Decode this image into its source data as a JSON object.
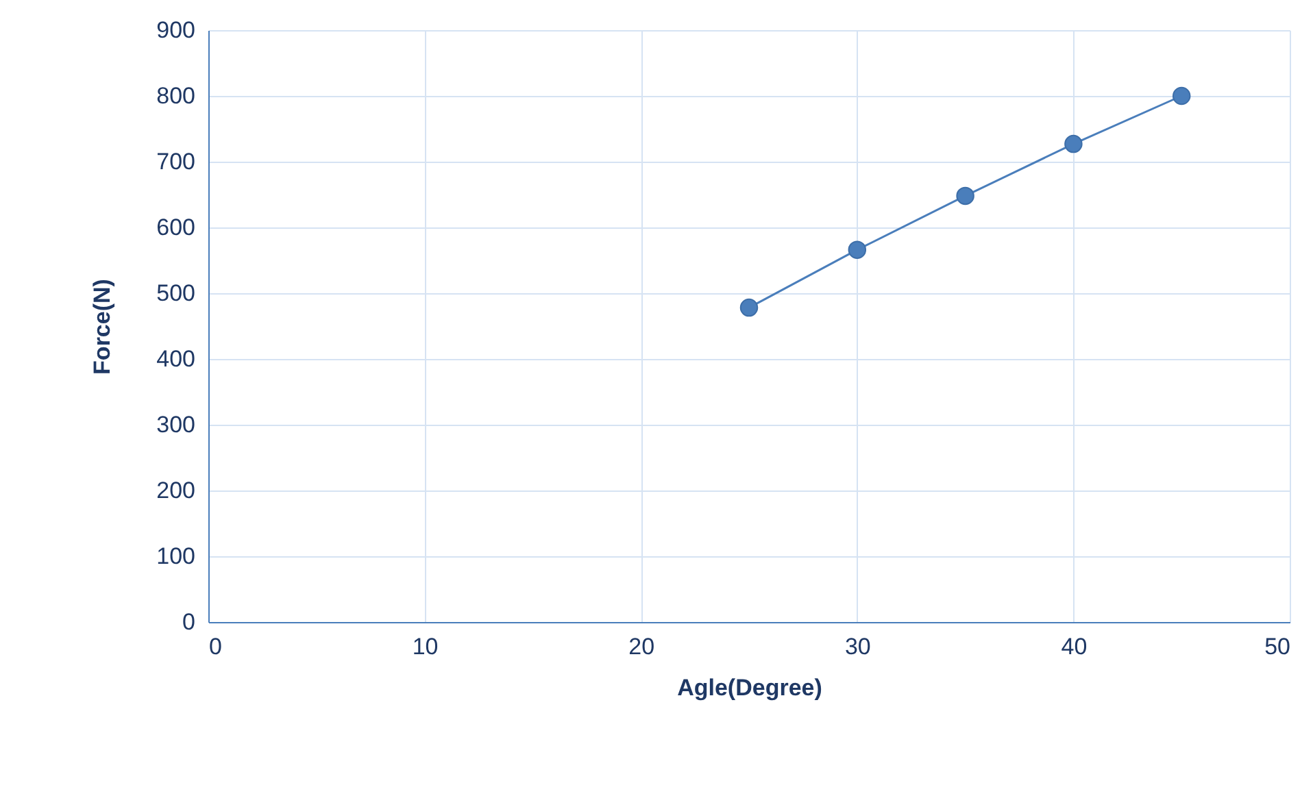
{
  "chart_data": {
    "type": "line",
    "xlabel": "Agle(Degree)",
    "ylabel": "Force(N)",
    "x": [
      25,
      30,
      35,
      40,
      45
    ],
    "series": [
      {
        "color": "#4a7ebb",
        "values": [
          478,
          566,
          648,
          727,
          800
        ]
      }
    ],
    "xlim": [
      0,
      50
    ],
    "xticks": [
      0,
      10,
      20,
      30,
      40,
      50
    ],
    "ylim": [
      0,
      900
    ],
    "yticks": [
      0,
      100,
      200,
      300,
      400,
      500,
      600,
      700,
      800,
      900
    ],
    "grid": true,
    "marker": "circle",
    "line_style": "solid"
  }
}
